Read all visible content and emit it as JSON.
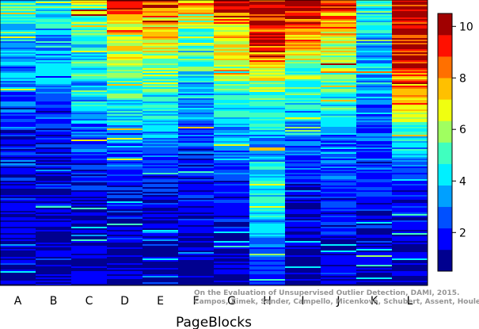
{
  "chart_data": {
    "type": "heatmap",
    "title": "",
    "xlabel": "PageBlocks",
    "ylabel": "",
    "columns": [
      "A",
      "B",
      "C",
      "D",
      "E",
      "F",
      "G",
      "H",
      "I",
      "J",
      "K",
      "L"
    ],
    "colorbar": {
      "min": 0.5,
      "max": 10.5,
      "ticks": [
        2,
        4,
        6,
        8,
        10
      ],
      "colors": [
        "#00008f",
        "#0000ff",
        "#0050ff",
        "#00a0ff",
        "#00f0ff",
        "#40ffbf",
        "#a0ff60",
        "#f0ff10",
        "#ffc000",
        "#ff7000",
        "#ff1000",
        "#a00000"
      ]
    },
    "column_profiles": {
      "A": [
        [
          0,
          5
        ],
        [
          0.1,
          4
        ],
        [
          0.3,
          3
        ],
        [
          0.45,
          2
        ],
        [
          0.6,
          1.5
        ],
        [
          1,
          1
        ]
      ],
      "B": [
        [
          0,
          5
        ],
        [
          0.1,
          4
        ],
        [
          0.3,
          3
        ],
        [
          0.45,
          2
        ],
        [
          0.6,
          1.5
        ],
        [
          1,
          1
        ]
      ],
      "C": [
        [
          0,
          6.5
        ],
        [
          0.1,
          5
        ],
        [
          0.3,
          4
        ],
        [
          0.5,
          2.5
        ],
        [
          0.7,
          1.5
        ],
        [
          1,
          1
        ]
      ],
      "D": [
        [
          0,
          9.5
        ],
        [
          0.1,
          7
        ],
        [
          0.3,
          5
        ],
        [
          0.5,
          3
        ],
        [
          0.7,
          1.5
        ],
        [
          1,
          1
        ]
      ],
      "E": [
        [
          0,
          9
        ],
        [
          0.1,
          7
        ],
        [
          0.3,
          5
        ],
        [
          0.5,
          3
        ],
        [
          0.7,
          1.5
        ],
        [
          1,
          1
        ]
      ],
      "F": [
        [
          0,
          8
        ],
        [
          0.1,
          5.5
        ],
        [
          0.3,
          4
        ],
        [
          0.55,
          2
        ],
        [
          0.75,
          1.5
        ],
        [
          1,
          1
        ]
      ],
      "G": [
        [
          0,
          10
        ],
        [
          0.1,
          7.5
        ],
        [
          0.3,
          5
        ],
        [
          0.5,
          3
        ],
        [
          0.7,
          1.8
        ],
        [
          1,
          1
        ]
      ],
      "H": [
        [
          0,
          10
        ],
        [
          0.15,
          9
        ],
        [
          0.3,
          6
        ],
        [
          0.5,
          3.5
        ],
        [
          0.7,
          4.5
        ],
        [
          0.85,
          3
        ],
        [
          1,
          2
        ]
      ],
      "I": [
        [
          0,
          10
        ],
        [
          0.12,
          8
        ],
        [
          0.3,
          5
        ],
        [
          0.5,
          3
        ],
        [
          0.7,
          1.5
        ],
        [
          1,
          1
        ]
      ],
      "J": [
        [
          0,
          9
        ],
        [
          0.12,
          7
        ],
        [
          0.3,
          5
        ],
        [
          0.5,
          3
        ],
        [
          0.7,
          2
        ],
        [
          1,
          1.3
        ]
      ],
      "K": [
        [
          0,
          5
        ],
        [
          0.1,
          4
        ],
        [
          0.3,
          3.5
        ],
        [
          0.5,
          2.5
        ],
        [
          0.7,
          1.8
        ],
        [
          1,
          1.2
        ]
      ],
      "L": [
        [
          0,
          10.3
        ],
        [
          0.2,
          9.5
        ],
        [
          0.35,
          7
        ],
        [
          0.5,
          4
        ],
        [
          0.65,
          2
        ],
        [
          1,
          1
        ]
      ]
    },
    "source_note": [
      "On the Evaluation of Unsupervised Outlier Detection, DAMI, 2015.",
      "Campos, Zimek, Sander, Campello, Micenková, Schubert, Assent, Houle"
    ]
  }
}
